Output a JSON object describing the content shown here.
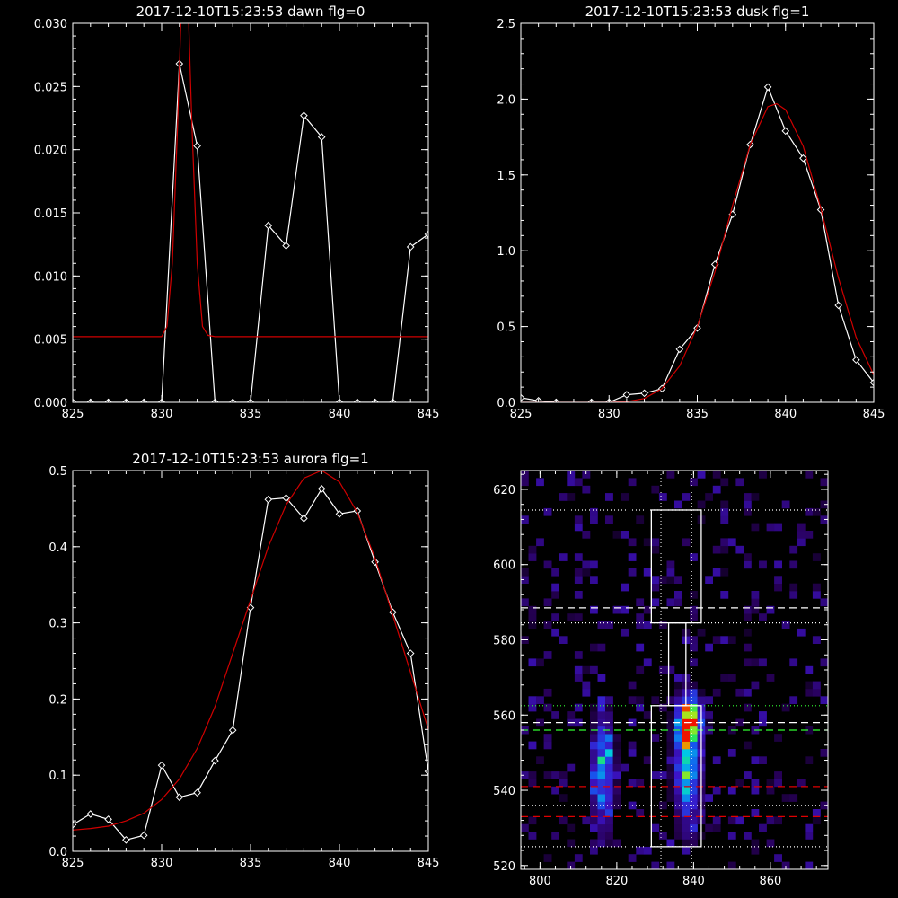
{
  "chart_data": [
    {
      "type": "line",
      "title": "2017-12-10T15:23:53 dawn flg=0",
      "xlim": [
        825,
        845
      ],
      "ylim": [
        0,
        0.03
      ],
      "xticks": [
        "825",
        "830",
        "835",
        "840",
        "845"
      ],
      "yticks": [
        "0.000",
        "0.005",
        "0.010",
        "0.015",
        "0.020",
        "0.025",
        "0.030"
      ],
      "series": [
        {
          "color": "#ffffff",
          "marker": "diamond",
          "x": [
            825,
            826,
            827,
            828,
            829,
            830,
            831,
            832,
            833,
            834,
            835,
            836,
            837,
            838,
            839,
            840,
            841,
            842,
            843,
            844,
            845
          ],
          "y": [
            0,
            0,
            0,
            0,
            0,
            0,
            0.0268,
            0.0203,
            0,
            0,
            0,
            0.014,
            0.0124,
            0.0227,
            0.021,
            0,
            0,
            0,
            0,
            0.0123,
            0.0133
          ]
        },
        {
          "color": "#d00000",
          "marker": "none",
          "x": [
            825,
            829,
            830,
            830.3,
            830.6,
            830.9,
            831.1,
            831.3,
            831.5,
            831.7,
            832,
            832.3,
            832.6,
            833,
            835,
            840,
            845
          ],
          "y": [
            0.0052,
            0.0052,
            0.0052,
            0.006,
            0.011,
            0.022,
            0.031,
            0.034,
            0.031,
            0.022,
            0.011,
            0.006,
            0.0053,
            0.0052,
            0.0052,
            0.0052,
            0.0052
          ]
        }
      ]
    },
    {
      "type": "line",
      "title": "2017-12-10T15:23:53 dusk flg=1",
      "xlim": [
        825,
        845
      ],
      "ylim": [
        0,
        2.5
      ],
      "xticks": [
        "825",
        "830",
        "835",
        "840",
        "845"
      ],
      "yticks": [
        "0.0",
        "0.5",
        "1.0",
        "1.5",
        "2.0",
        "2.5"
      ],
      "series": [
        {
          "color": "#ffffff",
          "marker": "diamond",
          "x": [
            825,
            826,
            827,
            828,
            829,
            830,
            831,
            832,
            833,
            834,
            835,
            836,
            837,
            838,
            839,
            840,
            841,
            842,
            843,
            844,
            845
          ],
          "y": [
            0.03,
            0.01,
            0,
            -0.02,
            0,
            0,
            0.05,
            0.06,
            0.09,
            0.35,
            0.49,
            0.91,
            1.24,
            1.7,
            2.08,
            1.79,
            1.61,
            1.27,
            0.64,
            0.28,
            0.13
          ]
        },
        {
          "color": "#d00000",
          "marker": "none",
          "x": [
            825,
            827,
            829,
            830,
            831,
            832,
            833,
            834,
            835,
            836,
            837,
            838,
            839,
            839.5,
            840,
            841,
            842,
            843,
            844,
            845
          ],
          "y": [
            0,
            0,
            0,
            0,
            0.005,
            0.025,
            0.09,
            0.24,
            0.5,
            0.86,
            1.3,
            1.7,
            1.95,
            1.97,
            1.93,
            1.69,
            1.28,
            0.82,
            0.43,
            0.18
          ]
        }
      ]
    },
    {
      "type": "line",
      "title": "2017-12-10T15:23:53 aurora flg=1",
      "xlim": [
        825,
        845
      ],
      "ylim": [
        0,
        0.5
      ],
      "xticks": [
        "825",
        "830",
        "835",
        "840",
        "845"
      ],
      "yticks": [
        "0.0",
        "0.1",
        "0.2",
        "0.3",
        "0.4",
        "0.5"
      ],
      "series": [
        {
          "color": "#ffffff",
          "marker": "diamond",
          "x": [
            825,
            826,
            827,
            828,
            829,
            830,
            831,
            832,
            833,
            834,
            835,
            836,
            837,
            838,
            839,
            840,
            841,
            842,
            843,
            844,
            845
          ],
          "y": [
            0.035,
            0.049,
            0.042,
            0.015,
            0.021,
            0.113,
            0.071,
            0.077,
            0.119,
            0.159,
            0.32,
            0.462,
            0.464,
            0.437,
            0.476,
            0.443,
            0.447,
            0.38,
            0.314,
            0.26,
            0.105
          ]
        },
        {
          "color": "#d00000",
          "marker": "none",
          "x": [
            825,
            826,
            827,
            828,
            829,
            830,
            831,
            832,
            833,
            834,
            835,
            836,
            837,
            838,
            839,
            840,
            841,
            842,
            843,
            844,
            845
          ],
          "y": [
            0.028,
            0.03,
            0.033,
            0.04,
            0.05,
            0.068,
            0.095,
            0.135,
            0.19,
            0.26,
            0.33,
            0.4,
            0.455,
            0.49,
            0.5,
            0.485,
            0.445,
            0.385,
            0.31,
            0.235,
            0.16
          ]
        }
      ]
    },
    {
      "type": "heatmap",
      "title": "",
      "xlim": [
        795,
        875
      ],
      "ylim": [
        519,
        625
      ],
      "xticks": [
        "800",
        "820",
        "840",
        "860"
      ],
      "yticks": [
        "520",
        "540",
        "560",
        "580",
        "600",
        "620"
      ],
      "boxes": [
        {
          "x": [
            829,
            842
          ],
          "y": [
            525,
            562.5
          ]
        },
        {
          "x": [
            829,
            842
          ],
          "y": [
            584.5,
            614.5
          ]
        },
        {
          "x": [
            833.5,
            838
          ],
          "y": [
            562.5,
            584.5
          ]
        }
      ],
      "vlines_dotted": [
        831.5,
        839.5
      ],
      "hlines_dotted_white": [
        614.5,
        584.5,
        536,
        525
      ],
      "hlines_dashed_white": [
        588.5,
        558
      ],
      "hlines_dotted_green": [
        562.5
      ],
      "hlines_dashed_green": [
        556
      ],
      "hlines_dashed_red": [
        541,
        533
      ],
      "blobs": [
        {
          "x": 816.5,
          "y": 545,
          "sx": 2.0,
          "sy": 10,
          "peak": 0.55
        },
        {
          "x": 838.5,
          "y": 546,
          "sx": 2.3,
          "sy": 11,
          "peak": 0.6
        },
        {
          "x": 839.0,
          "y": 559,
          "sx": 2.0,
          "sy": 3.5,
          "peak": 1.0
        }
      ]
    }
  ]
}
